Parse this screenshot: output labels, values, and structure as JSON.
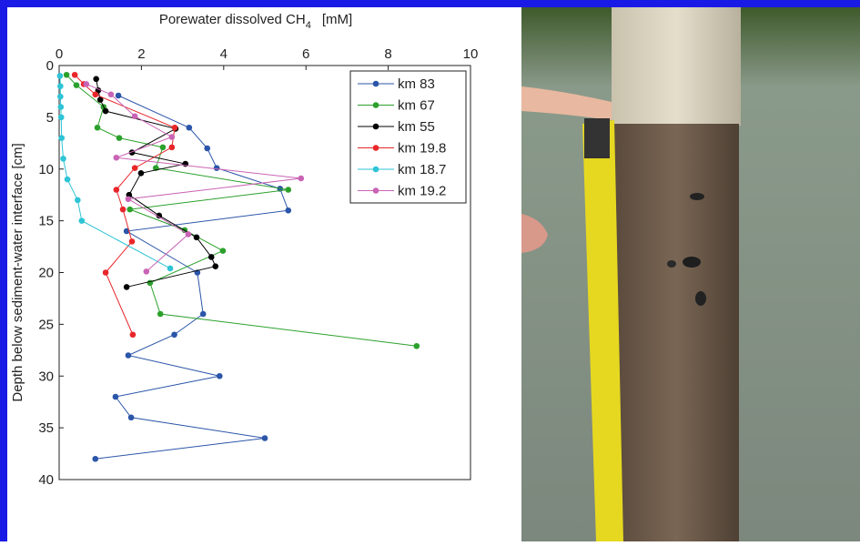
{
  "chart_data": {
    "type": "line",
    "xlabel": [
      "Porewater dissolved CH",
      "4",
      "[mM]"
    ],
    "ylabel": "Depth below sediment-water interface [cm]",
    "xlim": [
      0,
      10
    ],
    "xticks": [
      0,
      2,
      4,
      6,
      8,
      10
    ],
    "ylim": [
      0,
      40
    ],
    "yticks": [
      0,
      5,
      10,
      15,
      20,
      25,
      30,
      35,
      40
    ],
    "y_reversed": true,
    "x_axis_position": "top",
    "legend": "upper right",
    "series": [
      {
        "name": "km 83",
        "color": "#2b55a8",
        "x": [
          1.44,
          3.16,
          3.6,
          3.83,
          5.37,
          5.57,
          1.64,
          3.36,
          3.5,
          2.8,
          1.68,
          3.9,
          1.37,
          1.75,
          5.0,
          0.88
        ],
        "y": [
          2.9,
          6,
          8,
          9.9,
          11.9,
          14,
          16,
          20,
          24,
          26,
          28,
          30,
          32,
          34,
          36,
          38
        ]
      },
      {
        "name": "km 67",
        "color": "#2ca02c",
        "x": [
          0.18,
          0.42,
          1.08,
          0.93,
          1.46,
          2.52,
          2.35,
          5.57,
          1.72,
          3.05,
          3.98,
          2.21,
          2.46,
          8.69
        ],
        "y": [
          0.9,
          1.9,
          4,
          6,
          7,
          7.9,
          9.9,
          12,
          13.9,
          15.9,
          17.9,
          21,
          24,
          27.1
        ]
      },
      {
        "name": "km 55",
        "color": "#000000",
        "x": [
          0.9,
          0.95,
          1.0,
          1.13,
          2.83,
          1.77,
          3.07,
          1.99,
          1.7,
          2.43,
          3.34,
          3.7,
          3.8,
          1.64
        ],
        "y": [
          1.3,
          2.4,
          3.3,
          4.4,
          6.1,
          8.4,
          9.5,
          10.4,
          12.5,
          14.5,
          16.6,
          18.5,
          19.4,
          21.4
        ]
      },
      {
        "name": "km 19.8",
        "color": "#e8262a",
        "x": [
          0.38,
          0.6,
          0.88,
          2.81,
          2.74,
          1.84,
          1.39,
          1.55,
          1.77,
          1.13,
          1.79
        ],
        "y": [
          0.9,
          1.8,
          2.8,
          6,
          7.9,
          9.9,
          12,
          13.9,
          17,
          20,
          26
        ]
      },
      {
        "name": "km 18.7",
        "color": "#2ec4d6",
        "x": [
          0.02,
          0.03,
          0.03,
          0.04,
          0.05,
          0.06,
          0.1,
          0.2,
          0.45,
          0.55,
          2.7
        ],
        "y": [
          1,
          2,
          3,
          4,
          5,
          7,
          9,
          11,
          13,
          15,
          19.6
        ]
      },
      {
        "name": "km 19.2",
        "color": "#c964b5",
        "x": [
          0.66,
          1.26,
          1.84,
          2.74,
          1.39,
          5.88,
          1.68,
          3.14,
          2.12
        ],
        "y": [
          1.8,
          2.8,
          4.9,
          6.9,
          8.9,
          10.9,
          12.9,
          16.3,
          19.9
        ]
      }
    ]
  }
}
